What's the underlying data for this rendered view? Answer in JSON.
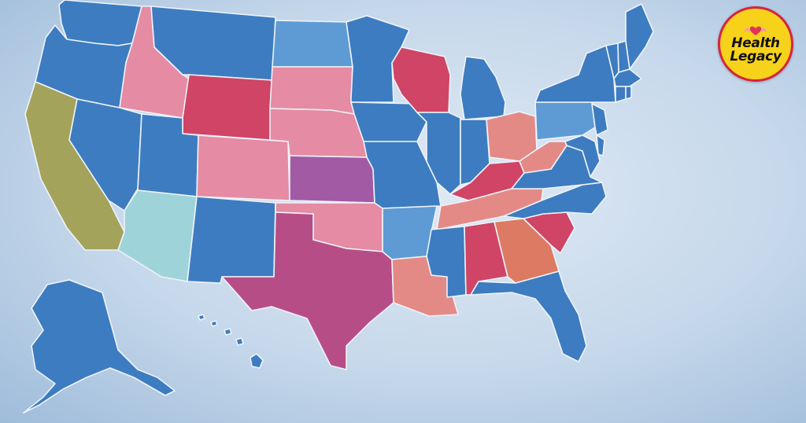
{
  "map": {
    "colors": {
      "blue": "#3d7cc0",
      "light_blue": "#5e9bd4",
      "teal": "#9fd3da",
      "olive": "#a4a35c",
      "pink": "#e58ba3",
      "red": "#d04466",
      "magenta": "#b74d86",
      "purple": "#a35aa5",
      "coral": "#e48a86",
      "orange": "#dd7a63"
    },
    "states": [
      {
        "code": "WA",
        "color": "blue"
      },
      {
        "code": "OR",
        "color": "blue"
      },
      {
        "code": "CA",
        "color": "olive"
      },
      {
        "code": "ID",
        "color": "pink"
      },
      {
        "code": "NV",
        "color": "blue"
      },
      {
        "code": "MT",
        "color": "blue"
      },
      {
        "code": "WY",
        "color": "red"
      },
      {
        "code": "UT",
        "color": "blue"
      },
      {
        "code": "AZ",
        "color": "teal"
      },
      {
        "code": "CO",
        "color": "pink"
      },
      {
        "code": "NM",
        "color": "blue"
      },
      {
        "code": "ND",
        "color": "light_blue"
      },
      {
        "code": "SD",
        "color": "pink"
      },
      {
        "code": "NE",
        "color": "pink"
      },
      {
        "code": "KS",
        "color": "purple"
      },
      {
        "code": "OK",
        "color": "pink"
      },
      {
        "code": "TX",
        "color": "magenta"
      },
      {
        "code": "MN",
        "color": "blue"
      },
      {
        "code": "IA",
        "color": "blue"
      },
      {
        "code": "MO",
        "color": "blue"
      },
      {
        "code": "AR",
        "color": "light_blue"
      },
      {
        "code": "LA",
        "color": "coral"
      },
      {
        "code": "WI",
        "color": "red"
      },
      {
        "code": "IL",
        "color": "blue"
      },
      {
        "code": "MI",
        "color": "blue"
      },
      {
        "code": "IN",
        "color": "blue"
      },
      {
        "code": "OH",
        "color": "coral"
      },
      {
        "code": "KY",
        "color": "red"
      },
      {
        "code": "TN",
        "color": "coral"
      },
      {
        "code": "MS",
        "color": "blue"
      },
      {
        "code": "AL",
        "color": "red"
      },
      {
        "code": "GA",
        "color": "orange"
      },
      {
        "code": "FL",
        "color": "blue"
      },
      {
        "code": "SC",
        "color": "red"
      },
      {
        "code": "NC",
        "color": "blue"
      },
      {
        "code": "VA",
        "color": "blue"
      },
      {
        "code": "WV",
        "color": "coral"
      },
      {
        "code": "PA",
        "color": "light_blue"
      },
      {
        "code": "NY",
        "color": "blue"
      },
      {
        "code": "NJ",
        "color": "blue"
      },
      {
        "code": "MD",
        "color": "blue"
      },
      {
        "code": "DE",
        "color": "blue"
      },
      {
        "code": "VT",
        "color": "blue"
      },
      {
        "code": "NH",
        "color": "blue"
      },
      {
        "code": "ME",
        "color": "blue"
      },
      {
        "code": "MA",
        "color": "blue"
      },
      {
        "code": "CT",
        "color": "blue"
      },
      {
        "code": "RI",
        "color": "blue"
      },
      {
        "code": "AK",
        "color": "blue"
      },
      {
        "code": "HI",
        "color": "blue"
      }
    ]
  },
  "logo": {
    "line1": "Health",
    "line2": "Legacy",
    "icon": "heart-muscle-icon",
    "bg_color": "#f7d21b",
    "ring_color": "#d6243f"
  }
}
